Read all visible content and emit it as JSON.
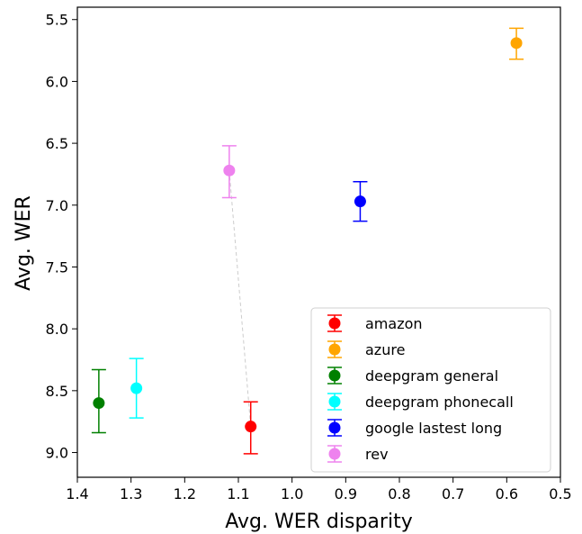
{
  "chart_data": {
    "type": "scatter",
    "title": "",
    "xlabel": "Avg. WER disparity",
    "ylabel": "Avg. WER",
    "xlim": [
      1.4,
      0.5
    ],
    "ylim": [
      9.2,
      5.4
    ],
    "x_inverted": true,
    "y_inverted": true,
    "xticks": [
      "1.4",
      "1.3",
      "1.2",
      "1.1",
      "1.0",
      "0.9",
      "0.8",
      "0.7",
      "0.6",
      "0.5"
    ],
    "xtick_values": [
      1.4,
      1.3,
      1.2,
      1.1,
      1.0,
      0.9,
      0.8,
      0.7,
      0.6,
      0.5
    ],
    "yticks": [
      "5.5",
      "6.0",
      "6.5",
      "7.0",
      "7.5",
      "8.0",
      "8.5",
      "9.0"
    ],
    "ytick_values": [
      5.5,
      6.0,
      6.5,
      7.0,
      7.5,
      8.0,
      8.5,
      9.0
    ],
    "grid": false,
    "legend_position": "bottom-right",
    "series": [
      {
        "name": "amazon",
        "color": "#ff0000",
        "x": 1.077,
        "y": 8.79,
        "yerr_low": 8.59,
        "yerr_high": 9.01
      },
      {
        "name": "azure",
        "color": "#ffa500",
        "x": 0.582,
        "y": 5.69,
        "yerr_low": 5.57,
        "yerr_high": 5.82
      },
      {
        "name": "deepgram general",
        "color": "#008000",
        "x": 1.36,
        "y": 8.6,
        "yerr_low": 8.33,
        "yerr_high": 8.84
      },
      {
        "name": "deepgram phonecall",
        "color": "#00ffff",
        "x": 1.29,
        "y": 8.48,
        "yerr_low": 8.24,
        "yerr_high": 8.72
      },
      {
        "name": "google lastest long",
        "color": "#0000ff",
        "x": 0.873,
        "y": 6.97,
        "yerr_low": 6.81,
        "yerr_high": 7.13
      },
      {
        "name": "rev",
        "color": "#ee82ee",
        "x": 1.117,
        "y": 6.72,
        "yerr_low": 6.52,
        "yerr_high": 6.94
      }
    ],
    "connector": {
      "from": "rev",
      "to": "amazon",
      "color": "#cccccc",
      "style": "dashed"
    }
  }
}
